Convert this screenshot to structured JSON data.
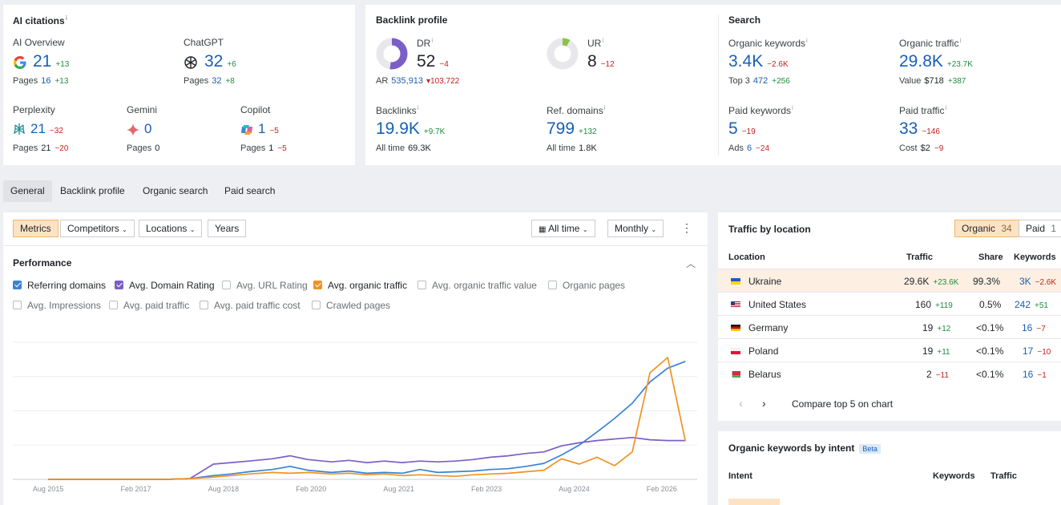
{
  "ai_citations": {
    "title": "AI citations",
    "items": [
      {
        "name": "AI Overview",
        "value": "21",
        "delta": "+13",
        "pages_label": "Pages",
        "pages": "16",
        "pages_delta": "+13",
        "icon": "google-icon"
      },
      {
        "name": "ChatGPT",
        "value": "32",
        "delta": "+6",
        "pages_label": "Pages",
        "pages": "32",
        "pages_delta": "+8",
        "icon": "chatgpt-icon"
      },
      {
        "name": "Perplexity",
        "value": "21",
        "delta": "−32",
        "pages_label": "Pages",
        "pages": "21",
        "pages_delta": "−20",
        "icon": "perplexity-icon"
      },
      {
        "name": "Gemini",
        "value": "0",
        "delta": "",
        "pages_label": "Pages",
        "pages": "0",
        "pages_delta": "",
        "icon": "gemini-icon"
      },
      {
        "name": "Copilot",
        "value": "1",
        "delta": "−5",
        "pages_label": "Pages",
        "pages": "1",
        "pages_delta": "−5",
        "icon": "copilot-icon"
      }
    ]
  },
  "backlink_profile": {
    "title": "Backlink profile",
    "dr": {
      "label": "DR",
      "value": "52",
      "delta": "−4",
      "ar_label": "AR",
      "ar": "535,913",
      "ar_delta": "103,722"
    },
    "ur": {
      "label": "UR",
      "value": "8",
      "delta": "−12"
    },
    "backlinks": {
      "label": "Backlinks",
      "value": "19.9K",
      "delta": "+9.7K",
      "sub_label": "All time",
      "sub": "69.3K"
    },
    "ref_domains": {
      "label": "Ref. domains",
      "value": "799",
      "delta": "+132",
      "sub_label": "All time",
      "sub": "1.8K"
    }
  },
  "search": {
    "title": "Search",
    "organic_keywords": {
      "label": "Organic keywords",
      "value": "3.4K",
      "delta": "−2.6K",
      "sub_label": "Top 3",
      "sub": "472",
      "sub_delta": "+256"
    },
    "organic_traffic": {
      "label": "Organic traffic",
      "value": "29.8K",
      "delta": "+23.7K",
      "sub_label": "Value",
      "sub": "$718",
      "sub_delta": "+387"
    },
    "paid_keywords": {
      "label": "Paid keywords",
      "value": "5",
      "delta": "−19",
      "sub_label": "Ads",
      "sub": "6",
      "sub_delta": "−24"
    },
    "paid_traffic": {
      "label": "Paid traffic",
      "value": "33",
      "delta": "−146",
      "sub_label": "Cost",
      "sub": "$2",
      "sub_delta": "−9"
    }
  },
  "tabs": [
    "General",
    "Backlink profile",
    "Organic search",
    "Paid search"
  ],
  "toolbar": {
    "metrics": "Metrics",
    "competitors": "Competitors",
    "locations": "Locations",
    "years": "Years",
    "all_time": "All time",
    "monthly": "Monthly"
  },
  "performance": {
    "title": "Performance",
    "checkboxes": [
      {
        "label": "Referring domains",
        "checked": true,
        "color": "#3b82d6"
      },
      {
        "label": "Avg. Domain Rating",
        "checked": true,
        "color": "#7b5fc7"
      },
      {
        "label": "Avg. URL Rating",
        "checked": false
      },
      {
        "label": "Avg. organic traffic",
        "checked": true,
        "color": "#f29222"
      },
      {
        "label": "Avg. organic traffic value",
        "checked": false
      },
      {
        "label": "Organic pages",
        "checked": false
      },
      {
        "label": "Avg. Impressions",
        "checked": false
      },
      {
        "label": "Avg. paid traffic",
        "checked": false
      },
      {
        "label": "Avg. paid traffic cost",
        "checked": false
      },
      {
        "label": "Crawled pages",
        "checked": false
      }
    ]
  },
  "chart_data": {
    "type": "line",
    "x_tick_labels": [
      "Aug 2015",
      "Feb 2017",
      "Aug 2018",
      "Feb 2020",
      "Aug 2021",
      "Feb 2023",
      "Aug 2024",
      "Feb 2026"
    ],
    "x": [
      2015.6,
      2016.6,
      2017.6,
      2018.0,
      2018.4,
      2018.7,
      2019.0,
      2019.4,
      2019.7,
      2020.0,
      2020.4,
      2020.7,
      2021.0,
      2021.3,
      2021.6,
      2021.9,
      2022.2,
      2022.5,
      2022.8,
      2023.1,
      2023.4,
      2023.7,
      2024.0,
      2024.3,
      2024.6,
      2024.9,
      2025.2,
      2025.5,
      2025.8,
      2026.1,
      2026.4
    ],
    "series": [
      {
        "name": "Referring domains",
        "color": "#3b82d6",
        "values": [
          0,
          0,
          0,
          1,
          5,
          7,
          10,
          13,
          17,
          12,
          9,
          11,
          8,
          9,
          8,
          13,
          9,
          10,
          11,
          13,
          14,
          17,
          21,
          32,
          45,
          62,
          80,
          100,
          128,
          146,
          155
        ]
      },
      {
        "name": "Avg. Domain Rating",
        "color": "#7b5fc7",
        "values": [
          0,
          0,
          0,
          1,
          20,
          22,
          24,
          27,
          31,
          26,
          23,
          25,
          22,
          24,
          22,
          24,
          23,
          24,
          26,
          29,
          31,
          34,
          36,
          44,
          48,
          51,
          53,
          55,
          52,
          51,
          51
        ]
      },
      {
        "name": "Avg. organic traffic",
        "color": "#f29222",
        "values": [
          0,
          0,
          0,
          1,
          3,
          5,
          7,
          9,
          8,
          9,
          7,
          8,
          6,
          7,
          5,
          6,
          5,
          4,
          6,
          7,
          8,
          10,
          12,
          27,
          20,
          29,
          18,
          36,
          140,
          160,
          50
        ]
      }
    ],
    "ylim": [
      0,
      180
    ],
    "grid": true
  },
  "traffic_by_location": {
    "title": "Traffic by location",
    "toggle": {
      "organic_label": "Organic",
      "organic_count": "34",
      "paid_label": "Paid",
      "paid_count": "1"
    },
    "columns": [
      "Location",
      "Traffic",
      "Share",
      "Keywords"
    ],
    "rows": [
      {
        "country": "Ukraine",
        "traffic": "29.6K",
        "traffic_delta": "+23.6K",
        "share": "99.3%",
        "keywords": "3K",
        "kw_delta": "−2.6K"
      },
      {
        "country": "United States",
        "traffic": "160",
        "traffic_delta": "+119",
        "share": "0.5%",
        "keywords": "242",
        "kw_delta": "+51"
      },
      {
        "country": "Germany",
        "traffic": "19",
        "traffic_delta": "+12",
        "share": "<0.1%",
        "keywords": "16",
        "kw_delta": "−7"
      },
      {
        "country": "Poland",
        "traffic": "19",
        "traffic_delta": "+11",
        "share": "<0.1%",
        "keywords": "17",
        "kw_delta": "−10"
      },
      {
        "country": "Belarus",
        "traffic": "2",
        "traffic_delta": "−11",
        "share": "<0.1%",
        "keywords": "16",
        "kw_delta": "−1"
      }
    ],
    "compare_label": "Compare top 5 on chart"
  },
  "keywords_by_intent": {
    "title": "Organic keywords by intent",
    "badge": "Beta",
    "columns": [
      "Intent",
      "Keywords",
      "Traffic"
    ]
  }
}
